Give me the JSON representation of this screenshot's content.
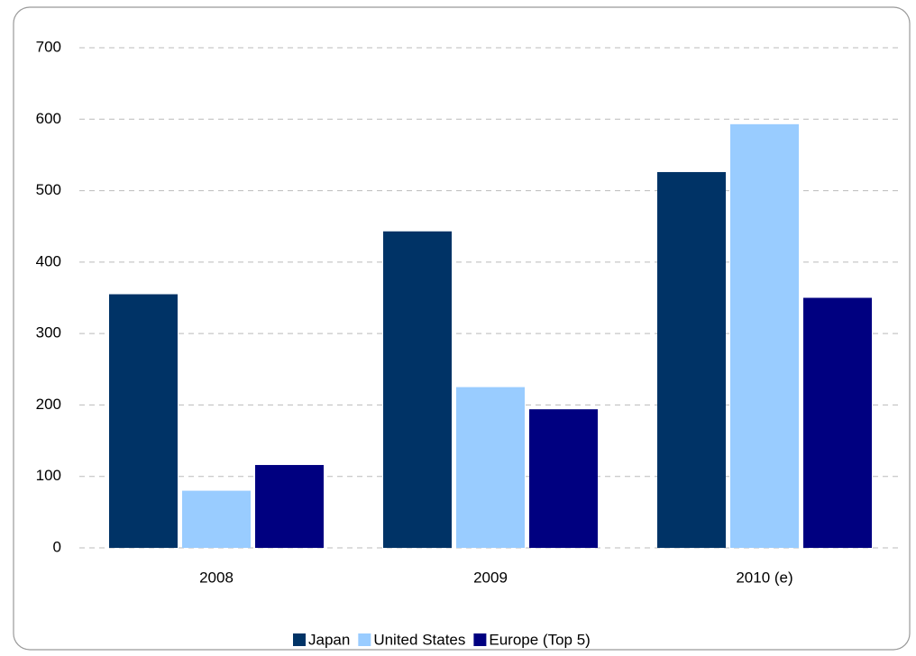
{
  "chart_data": {
    "type": "bar",
    "categories": [
      "2008",
      "2009",
      "2010 (e)"
    ],
    "series": [
      {
        "name": "Japan",
        "color": "#003366",
        "values": [
          355,
          443,
          526
        ]
      },
      {
        "name": "United States",
        "color": "#99ccff",
        "values": [
          80,
          225,
          593
        ]
      },
      {
        "name": "Europe (Top 5)",
        "color": "#000080",
        "values": [
          116,
          194,
          350
        ]
      }
    ],
    "ylim": [
      0,
      700
    ],
    "yticks": [
      0,
      100,
      200,
      300,
      400,
      500,
      600,
      700
    ],
    "grid": true,
    "legend": "bottom"
  }
}
